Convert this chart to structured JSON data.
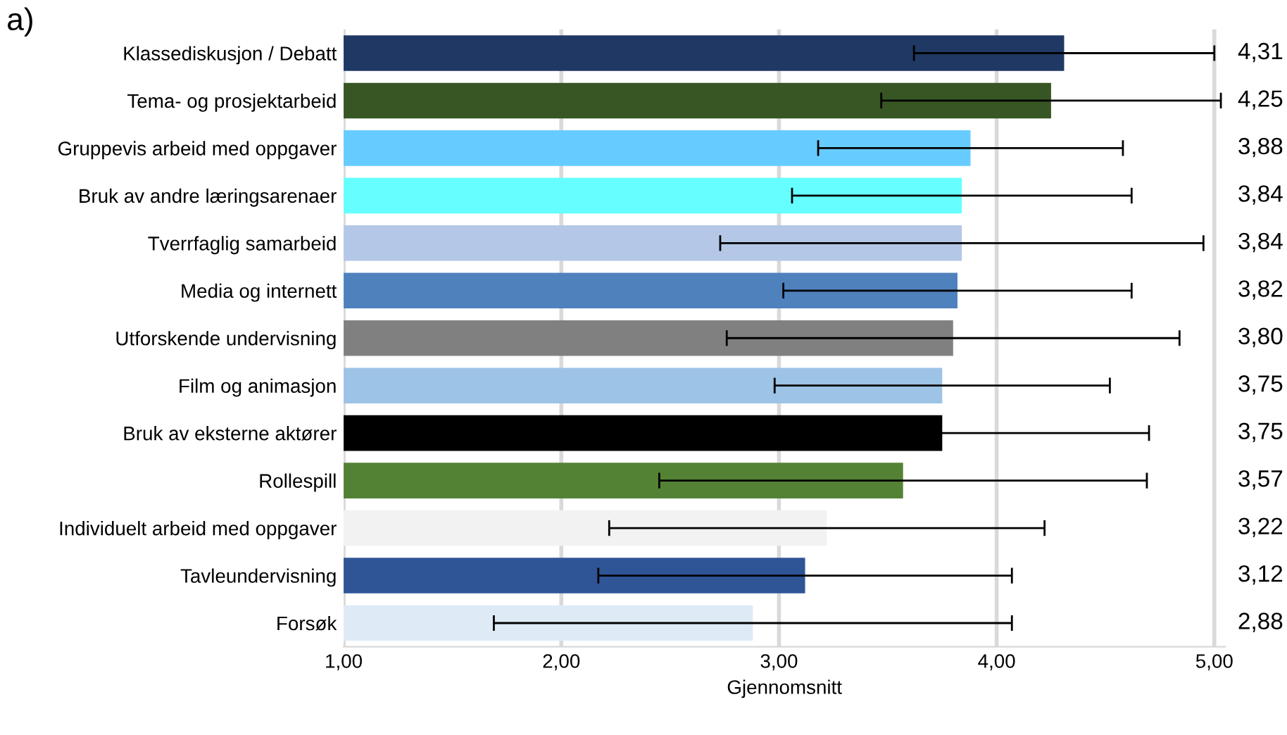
{
  "chart_data": {
    "type": "bar",
    "orientation": "horizontal",
    "title": "a)",
    "xlabel": "Gjennomsnitt",
    "categories": [
      "Klassediskusjon / Debatt",
      "Tema- og prosjektarbeid",
      "Gruppevis arbeid med oppgaver",
      "Bruk av andre læringsarenaer",
      "Tverrfaglig samarbeid",
      "Media og internett",
      "Utforskende undervisning",
      "Film og animasjon",
      "Bruk av eksterne aktører",
      "Rollespill",
      "Individuelt arbeid med oppgaver",
      "Tavleundervisning",
      "Forsøk"
    ],
    "values": [
      4.31,
      4.25,
      3.88,
      3.84,
      3.84,
      3.82,
      3.8,
      3.75,
      3.75,
      3.57,
      3.22,
      3.12,
      2.88
    ],
    "errors": [
      0.69,
      0.78,
      0.7,
      0.78,
      1.11,
      0.8,
      1.04,
      0.77,
      0.95,
      1.12,
      1.0,
      0.95,
      1.19
    ],
    "value_labels": [
      "4,31",
      "4,25",
      "3,88",
      "3,84",
      "3,84",
      "3,82",
      "3,80",
      "3,75",
      "3,75",
      "3,57",
      "3,22",
      "3,12",
      "2,88"
    ],
    "colors": [
      "#1f3864",
      "#375623",
      "#66ccff",
      "#66ffff",
      "#b4c7e7",
      "#4f81bd",
      "#808080",
      "#9dc3e6",
      "#000000",
      "#548235",
      "#f2f2f2",
      "#2f5597",
      "#deebf7"
    ],
    "xlim": [
      1,
      5.05
    ],
    "xticks": [
      {
        "value": 1,
        "label": "1,00"
      },
      {
        "value": 2,
        "label": "2,00"
      },
      {
        "value": 3,
        "label": "3,00"
      },
      {
        "value": 4,
        "label": "4,00"
      },
      {
        "value": 5,
        "label": "5,00"
      }
    ],
    "grid": "x",
    "legend": false
  }
}
